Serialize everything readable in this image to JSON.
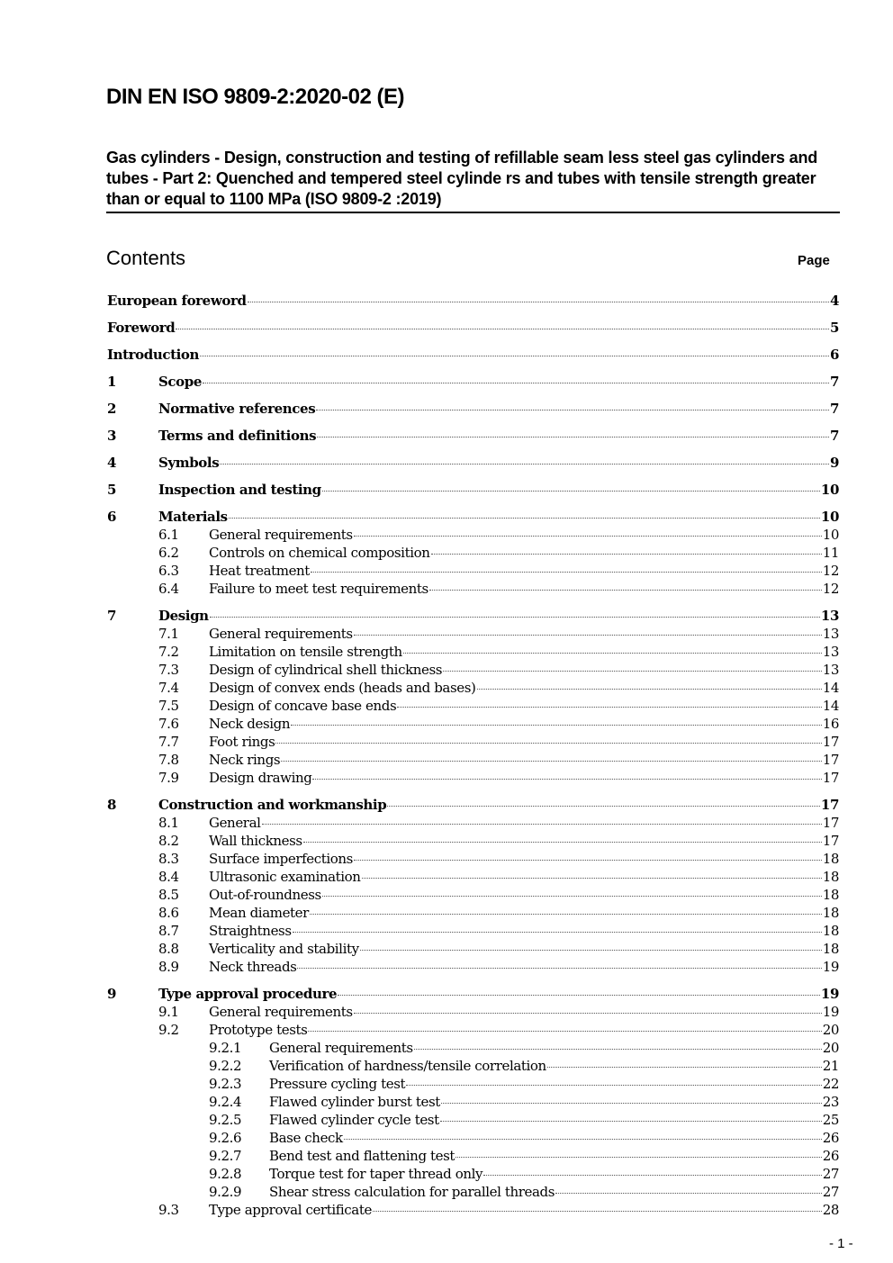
{
  "header": {
    "doc_title": "DIN EN ISO 9809-2:2020-02 (E)",
    "subtitle": "Gas cylinders - Design, construction and testing of refillable seam less steel gas cylinders and tubes - Part 2: Quenched and tempered steel cylinde rs and tubes with tensile strength greater than or equal to 1100 MPa (ISO 9809-2 :2019)"
  },
  "contents": {
    "heading": "Contents",
    "page_label": "Page"
  },
  "toc": [
    {
      "num": "",
      "title": "European foreword",
      "page": "4",
      "level": 0
    },
    {
      "num": "",
      "title": "Foreword",
      "page": "5",
      "level": 0
    },
    {
      "num": "",
      "title": "Introduction",
      "page": "6",
      "level": 0
    },
    {
      "num": "1",
      "title": "Scope",
      "page": "7",
      "level": 0
    },
    {
      "num": "2",
      "title": "Normative references",
      "page": "7",
      "level": 0
    },
    {
      "num": "3",
      "title": "Terms and definitions",
      "page": "7",
      "level": 0
    },
    {
      "num": "4",
      "title": "Symbols",
      "page": "9",
      "level": 0
    },
    {
      "num": "5",
      "title": "Inspection and testing",
      "page": "10",
      "level": 0
    },
    {
      "num": "6",
      "title": "Materials",
      "page": "10",
      "level": 0
    },
    {
      "num": "6.1",
      "title": "General requirements",
      "page": "10",
      "level": 1
    },
    {
      "num": "6.2",
      "title": "Controls on chemical composition",
      "page": "11",
      "level": 1
    },
    {
      "num": "6.3",
      "title": "Heat treatment",
      "page": "12",
      "level": 1
    },
    {
      "num": "6.4",
      "title": "Failure to meet test requirements",
      "page": "12",
      "level": 1
    },
    {
      "num": "7",
      "title": "Design",
      "page": "13",
      "level": 0
    },
    {
      "num": "7.1",
      "title": "General requirements",
      "page": "13",
      "level": 1
    },
    {
      "num": "7.2",
      "title": "Limitation on tensile strength",
      "page": "13",
      "level": 1
    },
    {
      "num": "7.3",
      "title": "Design of cylindrical shell thickness",
      "page": "13",
      "level": 1
    },
    {
      "num": "7.4",
      "title": "Design of convex ends (heads and bases)",
      "page": "14",
      "level": 1
    },
    {
      "num": "7.5",
      "title": "Design of concave base ends",
      "page": "14",
      "level": 1
    },
    {
      "num": "7.6",
      "title": "Neck design",
      "page": "16",
      "level": 1
    },
    {
      "num": "7.7",
      "title": "Foot rings",
      "page": "17",
      "level": 1
    },
    {
      "num": "7.8",
      "title": "Neck rings",
      "page": "17",
      "level": 1
    },
    {
      "num": "7.9",
      "title": "Design drawing",
      "page": "17",
      "level": 1
    },
    {
      "num": "8",
      "title": "Construction and workmanship",
      "page": "17",
      "level": 0
    },
    {
      "num": "8.1",
      "title": "General",
      "page": "17",
      "level": 1
    },
    {
      "num": "8.2",
      "title": "Wall thickness",
      "page": "17",
      "level": 1
    },
    {
      "num": "8.3",
      "title": "Surface imperfections",
      "page": "18",
      "level": 1
    },
    {
      "num": "8.4",
      "title": "Ultrasonic examination",
      "page": "18",
      "level": 1
    },
    {
      "num": "8.5",
      "title": "Out-of-roundness",
      "page": "18",
      "level": 1
    },
    {
      "num": "8.6",
      "title": "Mean diameter",
      "page": "18",
      "level": 1
    },
    {
      "num": "8.7",
      "title": "Straightness",
      "page": "18",
      "level": 1
    },
    {
      "num": "8.8",
      "title": "Verticality and stability",
      "page": "18",
      "level": 1
    },
    {
      "num": "8.9",
      "title": "Neck threads",
      "page": "19",
      "level": 1
    },
    {
      "num": "9",
      "title": "Type approval procedure",
      "page": "19",
      "level": 0
    },
    {
      "num": "9.1",
      "title": "General requirements",
      "page": "19",
      "level": 1
    },
    {
      "num": "9.2",
      "title": "Prototype tests",
      "page": "20",
      "level": 1
    },
    {
      "num": "9.2.1",
      "title": "General requirements",
      "page": "20",
      "level": 2
    },
    {
      "num": "9.2.2",
      "title": "Verification of hardness/tensile correlation",
      "page": "21",
      "level": 2
    },
    {
      "num": "9.2.3",
      "title": "Pressure cycling test",
      "page": "22",
      "level": 2
    },
    {
      "num": "9.2.4",
      "title": "Flawed cylinder burst test",
      "page": "23",
      "level": 2
    },
    {
      "num": "9.2.5",
      "title": "Flawed cylinder cycle test",
      "page": "25",
      "level": 2
    },
    {
      "num": "9.2.6",
      "title": "Base check",
      "page": "26",
      "level": 2
    },
    {
      "num": "9.2.7",
      "title": "Bend test and flattening test",
      "page": "26",
      "level": 2
    },
    {
      "num": "9.2.8",
      "title": "Torque test for taper thread only",
      "page": "27",
      "level": 2
    },
    {
      "num": "9.2.9",
      "title": "Shear stress calculation for parallel threads",
      "page": "27",
      "level": 2
    },
    {
      "num": "9.3",
      "title": "Type approval certificate",
      "page": "28",
      "level": 1
    }
  ],
  "footer": {
    "page_number": "- 1 -"
  }
}
